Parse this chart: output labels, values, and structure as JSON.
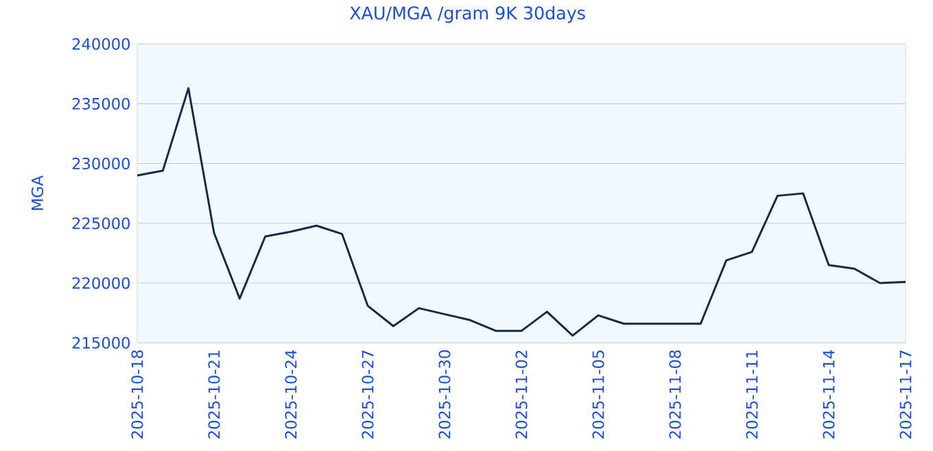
{
  "chart_data": {
    "type": "line",
    "title": "XAU/MGA /gram 9K 30days",
    "ylabel": "MGA",
    "x": [
      "2025-10-18",
      "2025-10-19",
      "2025-10-20",
      "2025-10-21",
      "2025-10-22",
      "2025-10-23",
      "2025-10-24",
      "2025-10-25",
      "2025-10-26",
      "2025-10-27",
      "2025-10-28",
      "2025-10-29",
      "2025-10-30",
      "2025-10-31",
      "2025-11-01",
      "2025-11-02",
      "2025-11-03",
      "2025-11-04",
      "2025-11-05",
      "2025-11-06",
      "2025-11-07",
      "2025-11-08",
      "2025-11-09",
      "2025-11-10",
      "2025-11-11",
      "2025-11-12",
      "2025-11-13",
      "2025-11-14",
      "2025-11-15",
      "2025-11-16",
      "2025-11-17"
    ],
    "series": [
      {
        "color": "#14284b",
        "values": [
          229000,
          229400,
          236300,
          224200,
          218700,
          223900,
          224300,
          224800,
          224100,
          218100,
          216400,
          217900,
          217400,
          216900,
          216000,
          216000,
          217600,
          215600,
          217300,
          216600,
          216600,
          216600,
          216600,
          221900,
          222600,
          227300,
          227500,
          221500,
          221200,
          220000,
          220100
        ]
      }
    ],
    "xlim": [
      "2025-10-18",
      "2025-11-17"
    ],
    "xticks": [
      "2025-10-18",
      "2025-10-21",
      "2025-10-24",
      "2025-10-27",
      "2025-10-30",
      "2025-11-02",
      "2025-11-05",
      "2025-11-08",
      "2025-11-11",
      "2025-11-14",
      "2025-11-17"
    ],
    "ylim": [
      215000,
      240000
    ],
    "yticks": [
      215000,
      220000,
      225000,
      230000,
      235000,
      240000
    ],
    "grid": "y",
    "marker": "none",
    "line_style": "solid"
  }
}
